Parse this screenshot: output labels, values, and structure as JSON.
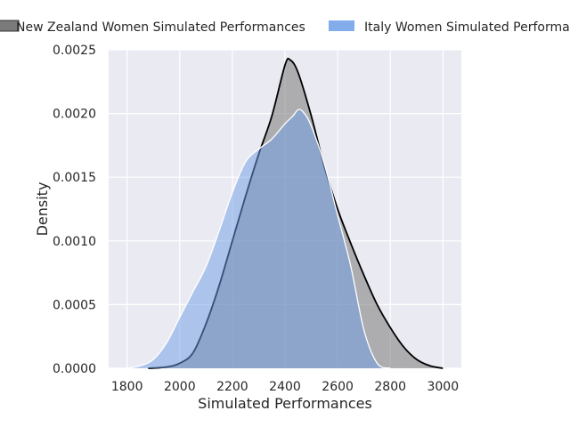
{
  "chart_data": {
    "type": "area",
    "xlabel": "Simulated Performances",
    "ylabel": "Density",
    "xlim": [
      1730,
      3070
    ],
    "ylim": [
      0,
      0.0025
    ],
    "xticks": [
      1800,
      2000,
      2200,
      2400,
      2600,
      2800,
      3000
    ],
    "xtick_labels": [
      "1800",
      "2000",
      "2200",
      "2400",
      "2600",
      "2800",
      "3000"
    ],
    "yticks": [
      0,
      0.0005,
      0.001,
      0.0015,
      0.002,
      0.0025
    ],
    "ytick_labels": [
      "0.0000",
      "0.0005",
      "0.0010",
      "0.0015",
      "0.0020",
      "0.0025"
    ],
    "grid": true,
    "legend_position": "top (above plot)",
    "series": [
      {
        "name": "New Zealand Women Simulated Performances",
        "fill_color": "#7a7a7a",
        "line_color": "#000000",
        "x": [
          1880,
          1950,
          2000,
          2050,
          2100,
          2150,
          2200,
          2250,
          2300,
          2350,
          2400,
          2420,
          2450,
          2500,
          2550,
          2600,
          2650,
          2700,
          2750,
          2800,
          2850,
          2900,
          2950,
          3000
        ],
        "y": [
          0,
          1e-05,
          4e-05,
          0.00012,
          0.00035,
          0.00065,
          0.001,
          0.00135,
          0.00168,
          0.00198,
          0.00238,
          0.00242,
          0.00232,
          0.00198,
          0.00158,
          0.00125,
          0.00098,
          0.00073,
          0.0005,
          0.00032,
          0.00017,
          7e-05,
          2e-05,
          0.0
        ]
      },
      {
        "name": "Italy Women Simulated Performances",
        "fill_color": "#6d9ee6",
        "line_color": "#ffffff",
        "x": [
          1800,
          1850,
          1900,
          1950,
          2000,
          2050,
          2100,
          2150,
          2200,
          2250,
          2300,
          2350,
          2400,
          2430,
          2450,
          2470,
          2500,
          2550,
          2600,
          2650,
          2700,
          2750,
          2800
        ],
        "y": [
          0,
          2e-05,
          7e-05,
          0.0002,
          0.0004,
          0.0006,
          0.0008,
          0.00108,
          0.00138,
          0.00162,
          0.00172,
          0.0018,
          0.00192,
          0.00198,
          0.00203,
          0.00201,
          0.0019,
          0.0016,
          0.0012,
          0.0008,
          0.0003,
          4e-05,
          0.0
        ]
      }
    ]
  }
}
